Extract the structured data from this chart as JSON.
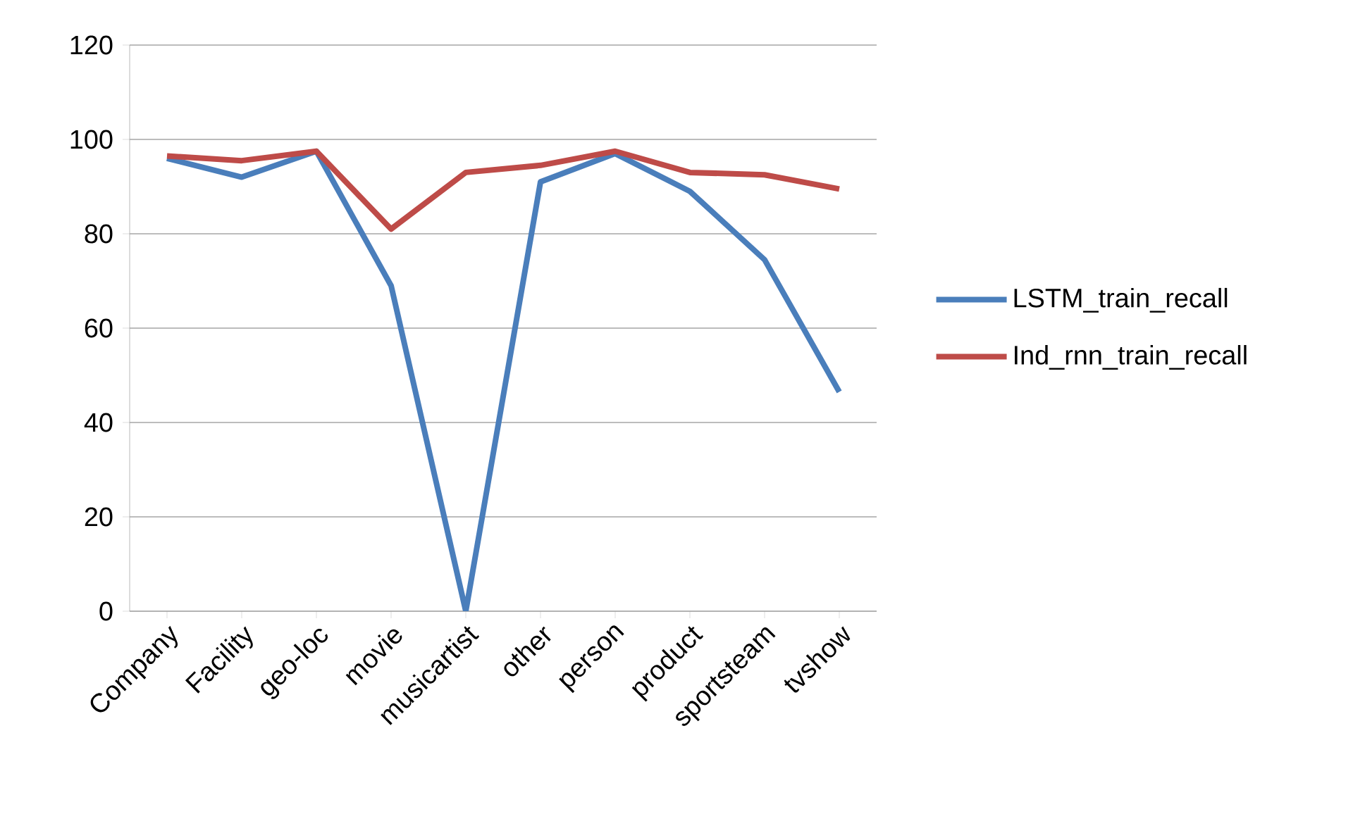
{
  "chart_data": {
    "type": "line",
    "categories": [
      "Company",
      "Facility",
      "geo-loc",
      "movie",
      "musicartist",
      "other",
      "person",
      "product",
      "sportsteam",
      "tvshow"
    ],
    "series": [
      {
        "name": "LSTM_train_recall",
        "color": "#4a7ebb",
        "values": [
          96,
          92,
          97.5,
          69,
          0,
          91,
          97,
          89,
          74.5,
          46.5
        ]
      },
      {
        "name": "Ind_rnn_train_recall",
        "color": "#be4b48",
        "values": [
          96.5,
          95.5,
          97.5,
          81,
          93,
          94.5,
          97.5,
          93,
          92.5,
          89.5
        ]
      }
    ],
    "ylim": [
      0,
      120
    ],
    "yticks": [
      0,
      20,
      40,
      60,
      80,
      100,
      120
    ],
    "grid": "y",
    "legend": "right",
    "marker": "none",
    "line_style": "solid"
  }
}
